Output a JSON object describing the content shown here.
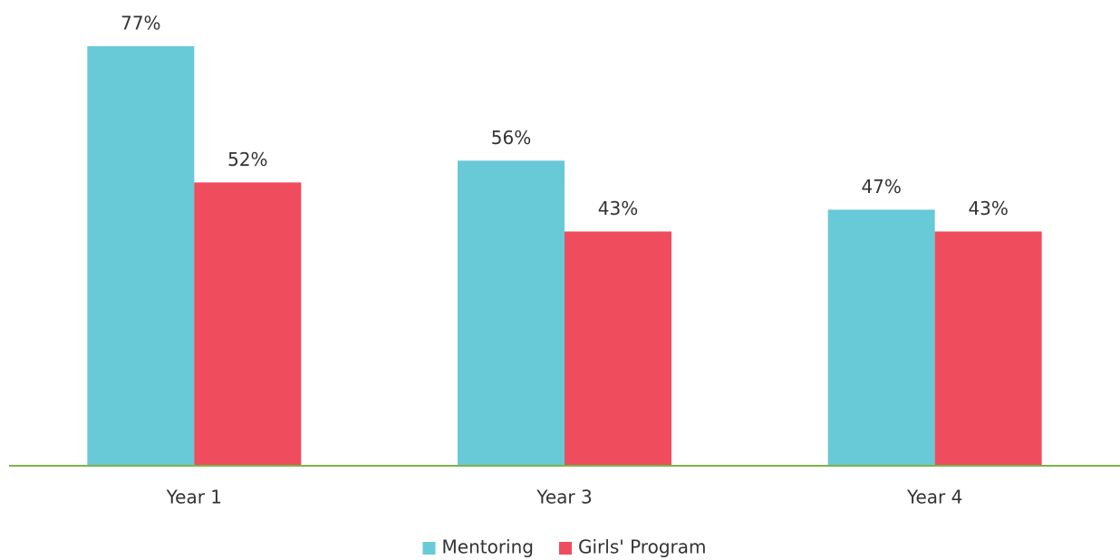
{
  "chart_data": {
    "type": "bar",
    "categories": [
      "Year 1",
      "Year 3",
      "Year 4"
    ],
    "series": [
      {
        "name": "Mentoring",
        "color": "#68c9d7",
        "values": [
          77,
          56,
          47
        ],
        "value_labels": [
          "77%",
          "56%",
          "47%"
        ]
      },
      {
        "name": "Girls' Program",
        "color": "#ef4d5e",
        "values": [
          52,
          43,
          43
        ],
        "value_labels": [
          "52%",
          "43%",
          "43%"
        ]
      }
    ],
    "ylim": [
      0,
      80
    ],
    "axis_color": "#7ab648",
    "legend": "bottom"
  }
}
